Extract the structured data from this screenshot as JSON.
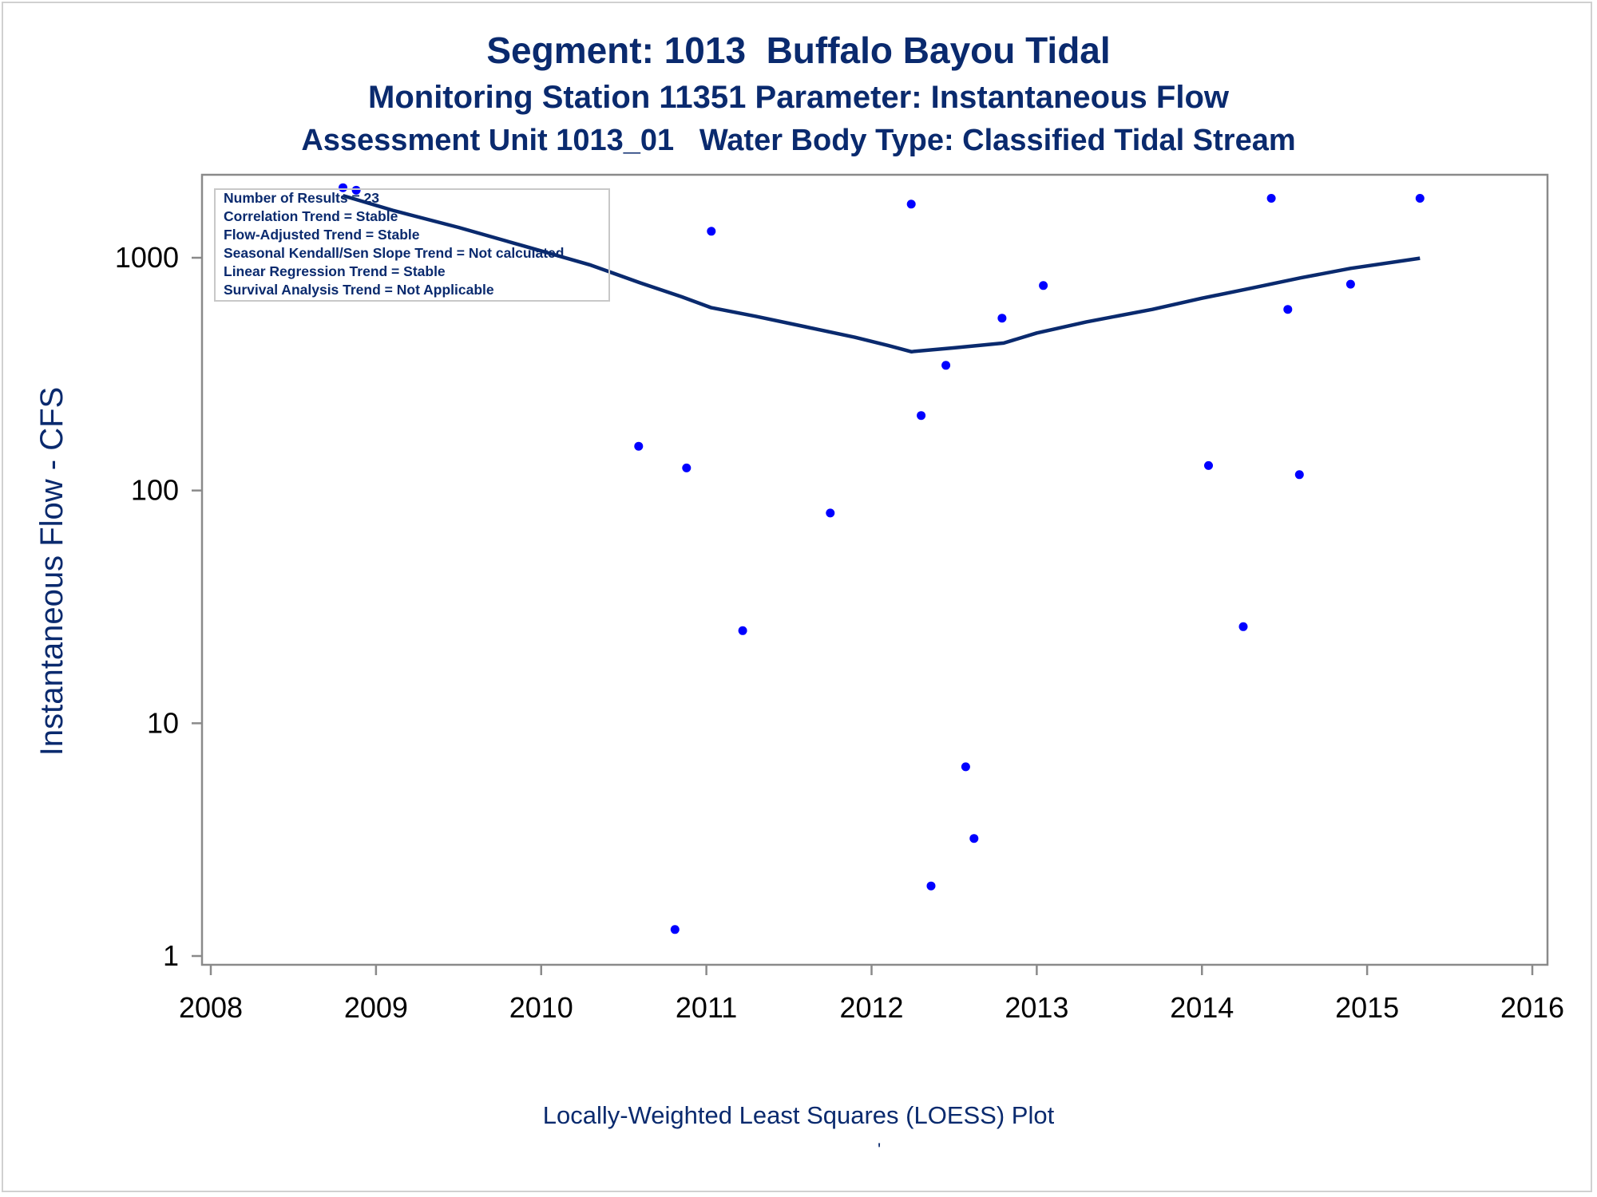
{
  "titles": {
    "line1": "Segment: 1013  Buffalo Bayou Tidal",
    "line2": "Monitoring Station 11351 Parameter: Instantaneous Flow",
    "line3": "Assessment Unit 1013_01   Water Body Type: Classified Tidal Stream"
  },
  "stats": [
    "Number of Results = 23",
    "Correlation Trend = Stable",
    "Flow-Adjusted Trend = Stable",
    "Seasonal Kendall/Sen Slope Trend = Not calculated",
    "Linear Regression Trend = Stable",
    "Survival Analysis Trend = Not Applicable"
  ],
  "footer": {
    "note": "Locally-Weighted Least Squares (LOESS) Plot",
    "mark": "'"
  },
  "colors": {
    "title": "#0a2a6e",
    "points": "#0000ff",
    "loess": "#0a2a6e",
    "axis": "#8a8a8a"
  },
  "chart_data": {
    "type": "scatter",
    "ylabel": "Instantaneous Flow - CFS",
    "xlabel": "",
    "yscale": "log",
    "xlim": [
      2008,
      2016
    ],
    "ylim": [
      1,
      2200
    ],
    "xticks": [
      "2008",
      "2009",
      "2010",
      "2011",
      "2012",
      "2013",
      "2014",
      "2015",
      "2016"
    ],
    "yticks": [
      "1",
      "10",
      "100",
      "1000"
    ],
    "grid": false,
    "series": [
      {
        "kind": "points",
        "points": [
          {
            "x": 2008.8,
            "y": 2000
          },
          {
            "x": 2008.88,
            "y": 1950
          },
          {
            "x": 2010.59,
            "y": 155
          },
          {
            "x": 2010.81,
            "y": 1.3
          },
          {
            "x": 2010.88,
            "y": 125
          },
          {
            "x": 2011.03,
            "y": 1300
          },
          {
            "x": 2011.22,
            "y": 25
          },
          {
            "x": 2011.75,
            "y": 80
          },
          {
            "x": 2012.24,
            "y": 1700
          },
          {
            "x": 2012.3,
            "y": 210
          },
          {
            "x": 2012.36,
            "y": 2
          },
          {
            "x": 2012.45,
            "y": 345
          },
          {
            "x": 2012.57,
            "y": 6.5
          },
          {
            "x": 2012.62,
            "y": 3.2
          },
          {
            "x": 2012.79,
            "y": 550
          },
          {
            "x": 2013.04,
            "y": 760
          },
          {
            "x": 2014.04,
            "y": 128
          },
          {
            "x": 2014.25,
            "y": 26
          },
          {
            "x": 2014.42,
            "y": 1800
          },
          {
            "x": 2014.52,
            "y": 600
          },
          {
            "x": 2014.59,
            "y": 117
          },
          {
            "x": 2014.9,
            "y": 770
          },
          {
            "x": 2015.32,
            "y": 1800
          }
        ]
      },
      {
        "kind": "loess",
        "points": [
          {
            "x": 2008.8,
            "y": 1850
          },
          {
            "x": 2009.1,
            "y": 1600
          },
          {
            "x": 2009.5,
            "y": 1350
          },
          {
            "x": 2009.9,
            "y": 1120
          },
          {
            "x": 2010.3,
            "y": 930
          },
          {
            "x": 2010.6,
            "y": 780
          },
          {
            "x": 2010.85,
            "y": 680
          },
          {
            "x": 2011.03,
            "y": 610
          },
          {
            "x": 2011.3,
            "y": 560
          },
          {
            "x": 2011.6,
            "y": 505
          },
          {
            "x": 2011.9,
            "y": 455
          },
          {
            "x": 2012.1,
            "y": 420
          },
          {
            "x": 2012.24,
            "y": 395
          },
          {
            "x": 2012.5,
            "y": 410
          },
          {
            "x": 2012.8,
            "y": 430
          },
          {
            "x": 2013.0,
            "y": 475
          },
          {
            "x": 2013.3,
            "y": 530
          },
          {
            "x": 2013.7,
            "y": 600
          },
          {
            "x": 2014.0,
            "y": 670
          },
          {
            "x": 2014.3,
            "y": 740
          },
          {
            "x": 2014.6,
            "y": 820
          },
          {
            "x": 2014.9,
            "y": 900
          },
          {
            "x": 2015.32,
            "y": 995
          }
        ]
      }
    ]
  }
}
